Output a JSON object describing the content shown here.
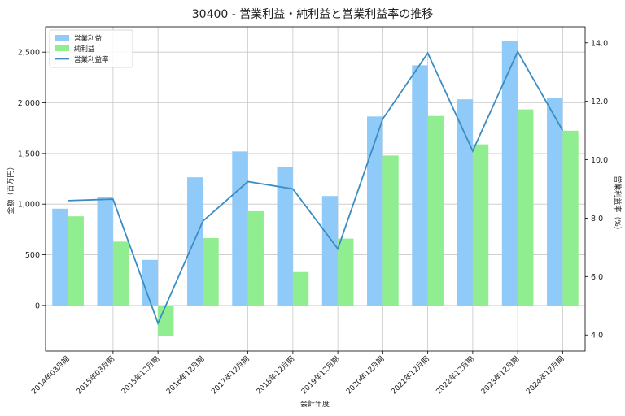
{
  "chart_data": {
    "type": "bar",
    "title": "30400 - 営業利益・純利益と営業利益率の推移",
    "xlabel": "会計年度",
    "ylabel": "金額（百万円）",
    "y2label": "営業利益率（%）",
    "categories": [
      "2014年03月期",
      "2015年03月期",
      "2015年12月期",
      "2016年12月期",
      "2017年12月期",
      "2018年12月期",
      "2019年12月期",
      "2020年12月期",
      "2021年12月期",
      "2022年12月期",
      "2023年12月期",
      "2024年12月期"
    ],
    "series": [
      {
        "name": "営業利益",
        "kind": "bar",
        "axis": "left",
        "color": "#90caf9",
        "values": [
          955,
          1070,
          450,
          1265,
          1520,
          1370,
          1080,
          1865,
          2370,
          2035,
          2610,
          2045
        ]
      },
      {
        "name": "純利益",
        "kind": "bar",
        "axis": "left",
        "color": "#90ee90",
        "values": [
          880,
          630,
          -300,
          665,
          930,
          330,
          660,
          1480,
          1870,
          1590,
          1935,
          1725
        ]
      },
      {
        "name": "営業利益率",
        "kind": "line",
        "axis": "right",
        "color": "#3a8dc4",
        "values": [
          8.6,
          8.65,
          4.4,
          7.9,
          9.25,
          9.0,
          6.95,
          11.4,
          13.65,
          10.3,
          13.7,
          11.0
        ]
      }
    ],
    "ylim": [
      -450,
      2750
    ],
    "yticks": [
      0,
      500,
      1000,
      1500,
      2000,
      2500
    ],
    "ytick_labels": [
      "0",
      "500",
      "1,000",
      "1,500",
      "2,000",
      "2,500"
    ],
    "y2lim": [
      3.45,
      14.55
    ],
    "y2ticks": [
      4.0,
      6.0,
      8.0,
      10.0,
      12.0,
      14.0
    ],
    "y2tick_labels": [
      "4.0",
      "6.0",
      "8.0",
      "10.0",
      "12.0",
      "14.0"
    ],
    "grid": true,
    "legend_position": "top-left"
  }
}
